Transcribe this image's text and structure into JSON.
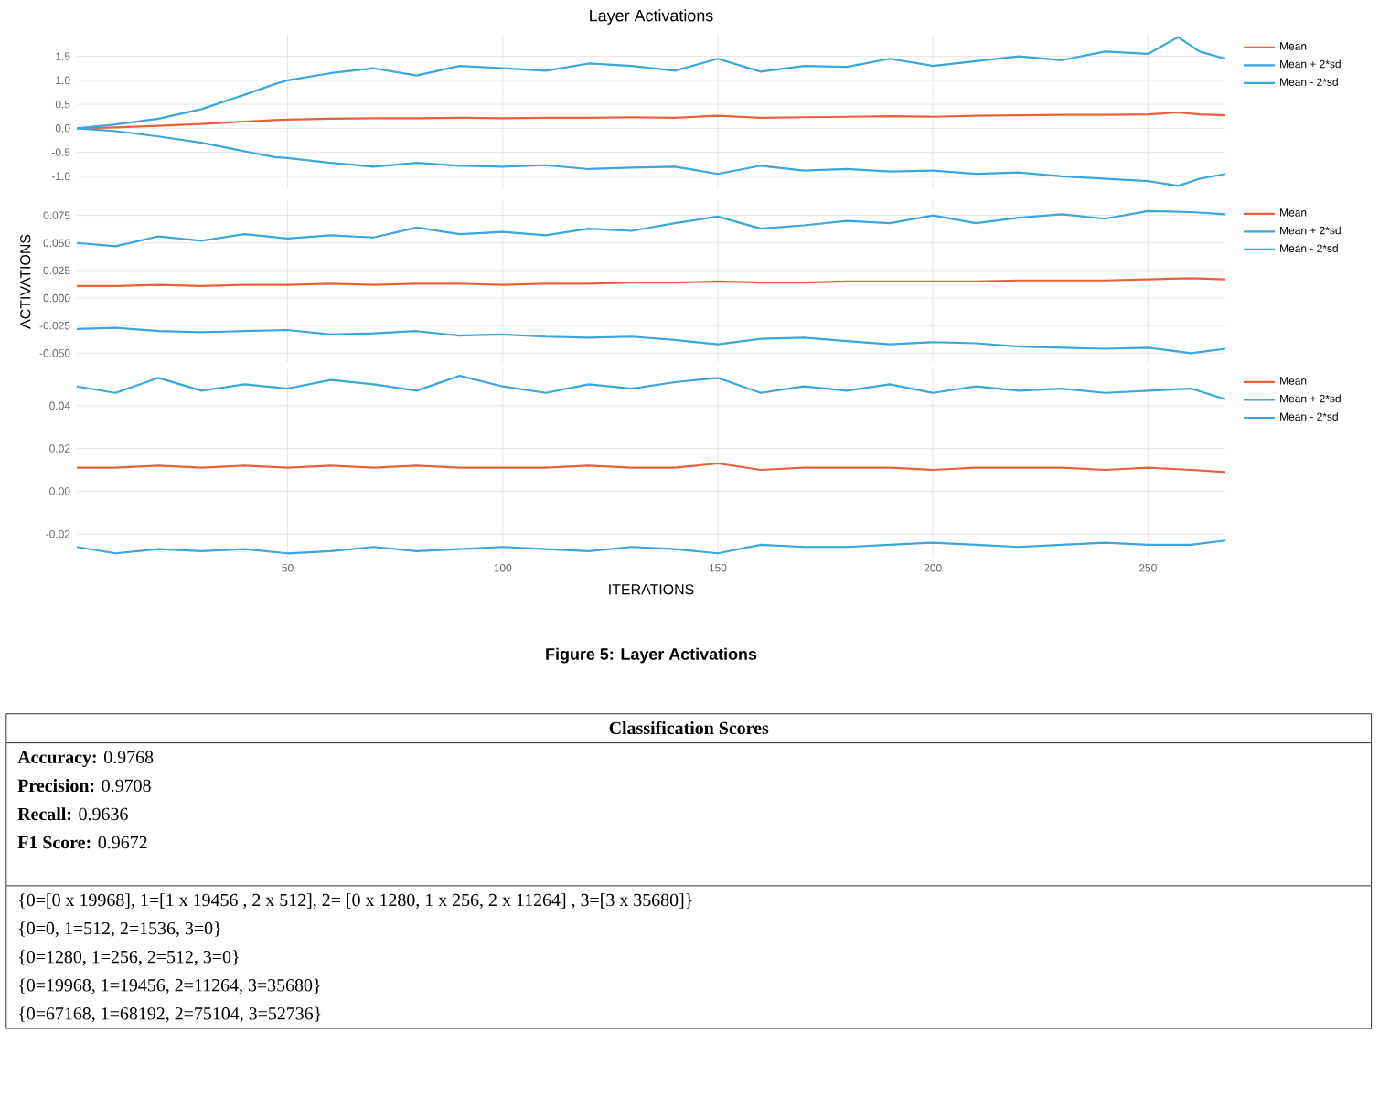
{
  "chart_data": [
    {
      "type": "line",
      "title": "Layer Activations",
      "x": [
        1,
        10,
        20,
        30,
        40,
        47,
        50,
        60,
        70,
        80,
        90,
        100,
        110,
        120,
        130,
        140,
        150,
        160,
        170,
        180,
        190,
        200,
        210,
        220,
        230,
        240,
        250,
        257,
        262,
        268
      ],
      "series": [
        {
          "name": "Mean",
          "color": "#e8603c",
          "values": [
            0,
            0.02,
            0.05,
            0.09,
            0.14,
            0.17,
            0.18,
            0.2,
            0.21,
            0.21,
            0.22,
            0.21,
            0.22,
            0.22,
            0.23,
            0.22,
            0.26,
            0.22,
            0.23,
            0.24,
            0.25,
            0.24,
            0.26,
            0.27,
            0.28,
            0.28,
            0.29,
            0.33,
            0.29,
            0.27
          ]
        },
        {
          "name": "Mean + 2*sd",
          "color": "#3aa6dc",
          "values": [
            0,
            0.08,
            0.2,
            0.4,
            0.7,
            0.92,
            1.0,
            1.15,
            1.25,
            1.1,
            1.3,
            1.25,
            1.2,
            1.35,
            1.3,
            1.2,
            1.45,
            1.18,
            1.3,
            1.28,
            1.45,
            1.3,
            1.4,
            1.5,
            1.42,
            1.6,
            1.55,
            1.9,
            1.6,
            1.45
          ]
        },
        {
          "name": "Mean - 2*sd",
          "color": "#3aa6dc",
          "values": [
            0,
            -0.06,
            -0.17,
            -0.3,
            -0.48,
            -0.6,
            -0.62,
            -0.72,
            -0.8,
            -0.72,
            -0.78,
            -0.8,
            -0.77,
            -0.85,
            -0.82,
            -0.8,
            -0.95,
            -0.78,
            -0.88,
            -0.85,
            -0.9,
            -0.88,
            -0.95,
            -0.92,
            -1.0,
            -1.05,
            -1.1,
            -1.2,
            -1.05,
            -0.95
          ]
        }
      ],
      "xlim": [
        1,
        268
      ],
      "xticks": [
        50,
        100,
        150,
        200,
        250
      ],
      "ylim": [
        -1.25,
        1.95
      ],
      "yticks": [
        {
          "value": -1.0,
          "label": "-1.0"
        },
        {
          "value": -0.5,
          "label": "-0.5"
        },
        {
          "value": 0,
          "label": "0.0"
        },
        {
          "value": 0.5,
          "label": "0.5"
        },
        {
          "value": 1.0,
          "label": "1.0"
        },
        {
          "value": 1.5,
          "label": "1.5"
        }
      ],
      "grid": true,
      "legend": "top right",
      "tick_labels": "y"
    },
    {
      "type": "line",
      "ylabel": "ACTIVATIONS",
      "x": [
        1,
        10,
        20,
        30,
        40,
        50,
        60,
        70,
        80,
        90,
        100,
        110,
        120,
        130,
        140,
        150,
        160,
        170,
        180,
        190,
        200,
        210,
        220,
        230,
        240,
        250,
        260,
        268
      ],
      "series": [
        {
          "name": "Mean",
          "color": "#e8603c",
          "values": [
            0.011,
            0.011,
            0.012,
            0.011,
            0.012,
            0.012,
            0.013,
            0.012,
            0.013,
            0.013,
            0.012,
            0.013,
            0.013,
            0.014,
            0.014,
            0.015,
            0.014,
            0.014,
            0.015,
            0.015,
            0.015,
            0.015,
            0.016,
            0.016,
            0.016,
            0.017,
            0.018,
            0.017
          ]
        },
        {
          "name": "Mean + 2*sd",
          "color": "#3aa6dc",
          "values": [
            0.05,
            0.047,
            0.056,
            0.052,
            0.058,
            0.054,
            0.057,
            0.055,
            0.064,
            0.058,
            0.06,
            0.057,
            0.063,
            0.061,
            0.068,
            0.074,
            0.063,
            0.066,
            0.07,
            0.068,
            0.075,
            0.068,
            0.073,
            0.076,
            0.072,
            0.079,
            0.078,
            0.076
          ]
        },
        {
          "name": "Mean - 2*sd",
          "color": "#3aa6dc",
          "values": [
            -0.028,
            -0.027,
            -0.03,
            -0.031,
            -0.03,
            -0.029,
            -0.033,
            -0.032,
            -0.03,
            -0.034,
            -0.033,
            -0.035,
            -0.036,
            -0.035,
            -0.038,
            -0.042,
            -0.037,
            -0.036,
            -0.039,
            -0.042,
            -0.04,
            -0.041,
            -0.044,
            -0.045,
            -0.046,
            -0.045,
            -0.05,
            -0.046
          ]
        }
      ],
      "xlim": [
        1,
        268
      ],
      "xticks": [
        50,
        100,
        150,
        200,
        250
      ],
      "ylim": [
        -0.058,
        0.088
      ],
      "yticks": [
        {
          "value": -0.05,
          "label": "-0.050"
        },
        {
          "value": -0.025,
          "label": "-0.025"
        },
        {
          "value": 0,
          "label": "0.000"
        },
        {
          "value": 0.025,
          "label": "0.025"
        },
        {
          "value": 0.05,
          "label": "0.050"
        },
        {
          "value": 0.075,
          "label": "0.075"
        }
      ],
      "grid": true,
      "legend": "top right",
      "tick_labels": "y"
    },
    {
      "type": "line",
      "xlabel": "ITERATIONS",
      "annotations": [
        "Figure 5: Layer Activations"
      ],
      "x": [
        1,
        10,
        20,
        30,
        40,
        50,
        60,
        70,
        80,
        90,
        100,
        110,
        120,
        130,
        140,
        150,
        160,
        170,
        180,
        190,
        200,
        210,
        220,
        230,
        240,
        250,
        260,
        268
      ],
      "series": [
        {
          "name": "Mean",
          "color": "#e8603c",
          "values": [
            0.011,
            0.011,
            0.012,
            0.011,
            0.012,
            0.011,
            0.012,
            0.011,
            0.012,
            0.011,
            0.011,
            0.011,
            0.012,
            0.011,
            0.011,
            0.013,
            0.01,
            0.011,
            0.011,
            0.011,
            0.01,
            0.011,
            0.011,
            0.011,
            0.01,
            0.011,
            0.01,
            0.009
          ]
        },
        {
          "name": "Mean + 2*sd",
          "color": "#3aa6dc",
          "values": [
            0.049,
            0.046,
            0.053,
            0.047,
            0.05,
            0.048,
            0.052,
            0.05,
            0.047,
            0.054,
            0.049,
            0.046,
            0.05,
            0.048,
            0.051,
            0.053,
            0.046,
            0.049,
            0.047,
            0.05,
            0.046,
            0.049,
            0.047,
            0.048,
            0.046,
            0.047,
            0.048,
            0.043
          ]
        },
        {
          "name": "Mean - 2*sd",
          "color": "#3aa6dc",
          "values": [
            -0.026,
            -0.029,
            -0.027,
            -0.028,
            -0.027,
            -0.029,
            -0.028,
            -0.026,
            -0.028,
            -0.027,
            -0.026,
            -0.027,
            -0.028,
            -0.026,
            -0.027,
            -0.029,
            -0.025,
            -0.026,
            -0.026,
            -0.025,
            -0.024,
            -0.025,
            -0.026,
            -0.025,
            -0.024,
            -0.025,
            -0.025,
            -0.023
          ]
        }
      ],
      "xlim": [
        1,
        268
      ],
      "xticks": [
        50,
        100,
        150,
        200,
        250
      ],
      "ylim": [
        -0.031,
        0.057
      ],
      "yticks": [
        {
          "value": -0.02,
          "label": "-0.02"
        },
        {
          "value": 0,
          "label": "0.00"
        },
        {
          "value": 0.02,
          "label": "0.02"
        },
        {
          "value": 0.04,
          "label": "0.04"
        }
      ],
      "grid": true,
      "legend": "top right"
    },
    {
      "type": "other",
      "title": "Classification Scores",
      "annotations": [
        "**Accuracy:** 0.9768",
        "**Precision:** 0.9708",
        "**Recall:** 0.9636",
        "**F1 Score:** 0.9672",
        "{0=[0 x 19968], 1=[1 x 19456 , 2 x 512], 2= [0 x 1280, 1 x 256, 2 x 11264] , 3=[3 x 35680]}",
        "{0=0, 1=512, 2=1536, 3=0}",
        "{0=1280, 1=256, 2=512, 3=0}",
        "{0=19968, 1=19456, 2=11264, 3=35680}",
        "{0=67168, 1=68192, 2=75104, 3=52736}"
      ]
    }
  ]
}
